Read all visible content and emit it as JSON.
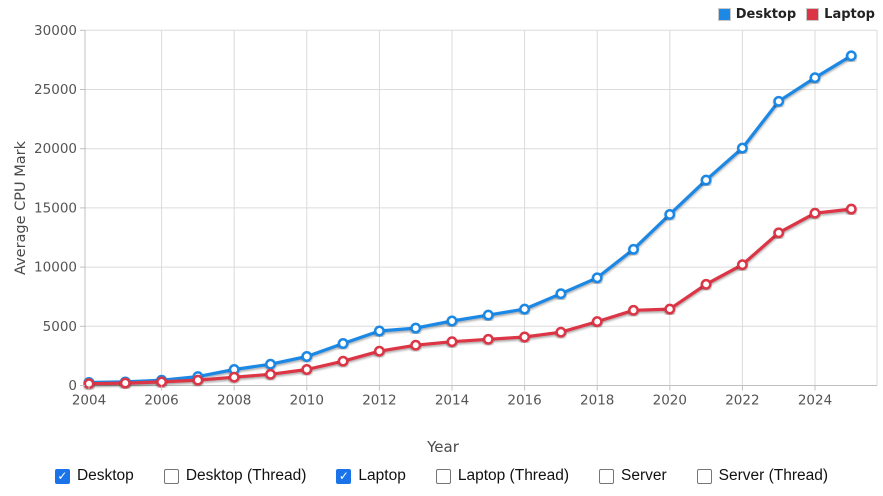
{
  "legend": {
    "items": [
      {
        "label": "Desktop",
        "color": "#1e88e5"
      },
      {
        "label": "Laptop",
        "color": "#dc3545"
      }
    ]
  },
  "chart_data": {
    "type": "line",
    "x": [
      2004,
      2005,
      2006,
      2007,
      2008,
      2009,
      2010,
      2011,
      2012,
      2013,
      2014,
      2015,
      2016,
      2017,
      2018,
      2019,
      2020,
      2021,
      2022,
      2023,
      2024,
      2025
    ],
    "series": [
      {
        "name": "Desktop",
        "color": "#1e88e5",
        "values": [
          250,
          300,
          450,
          750,
          1350,
          1800,
          2450,
          3550,
          4600,
          4850,
          5450,
          5950,
          6450,
          7750,
          9100,
          11500,
          14450,
          17350,
          20050,
          24000,
          26000,
          27850
        ]
      },
      {
        "name": "Laptop",
        "color": "#dc3545",
        "values": [
          150,
          200,
          300,
          450,
          700,
          950,
          1350,
          2050,
          2900,
          3400,
          3700,
          3900,
          4100,
          4500,
          5400,
          6350,
          6450,
          8550,
          10200,
          12900,
          14550,
          14900
        ]
      }
    ],
    "xlabel": "Year",
    "ylabel": "Average CPU Mark",
    "ylim": [
      0,
      30000
    ],
    "xlim": [
      2004,
      2025
    ],
    "y_ticks": [
      0,
      5000,
      10000,
      15000,
      20000,
      25000,
      30000
    ],
    "x_ticks": [
      2004,
      2006,
      2008,
      2010,
      2012,
      2014,
      2016,
      2018,
      2020,
      2022,
      2024
    ],
    "grid": true,
    "legend_position": "top-right",
    "point_style": "open-circle"
  },
  "controls": {
    "checkboxes": [
      {
        "label": "Desktop",
        "checked": true
      },
      {
        "label": "Desktop (Thread)",
        "checked": false
      },
      {
        "label": "Laptop",
        "checked": true
      },
      {
        "label": "Laptop (Thread)",
        "checked": false
      },
      {
        "label": "Server",
        "checked": false
      },
      {
        "label": "Server (Thread)",
        "checked": false
      }
    ],
    "check_glyph": "✓",
    "checked_color": "#1a73e8"
  },
  "colors": {
    "grid": "#dbdbdb",
    "axis": "#c0c0c0",
    "tick_text": "#555555",
    "axis_title": "#4a4a4a"
  }
}
